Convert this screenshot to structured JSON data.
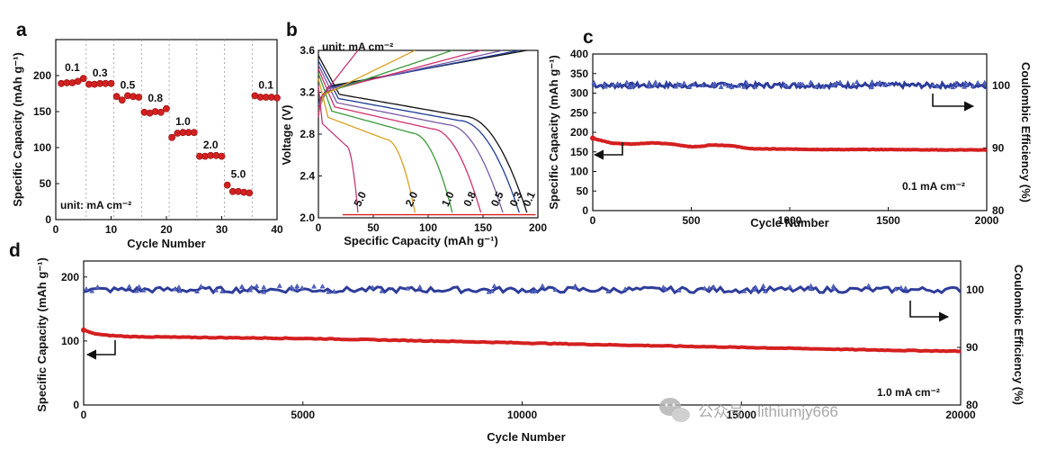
{
  "colors": {
    "capacity": "#d42020",
    "ce": "#2e3d9a",
    "arrow": "#111111"
  },
  "watermark": {
    "text": "公众号 · lithiumjy666",
    "icon": "wechat-icon"
  },
  "chart_data": [
    {
      "panel": "a",
      "type": "scatter",
      "xlabel": "Cycle Number",
      "ylabel": "Specific Capacity (mAh g⁻¹)",
      "xlim": [
        0,
        40
      ],
      "ylim": [
        0,
        250
      ],
      "xticks": [
        0,
        10,
        20,
        30,
        40
      ],
      "yticks": [
        0,
        50,
        100,
        150,
        200
      ],
      "unit_note": "unit: mA cm⁻²",
      "groups": [
        {
          "rate": "0.1",
          "x": [
            1,
            2,
            3,
            4,
            5
          ],
          "y": [
            189,
            190,
            190,
            192,
            196
          ]
        },
        {
          "rate": "0.3",
          "x": [
            6,
            7,
            8,
            9,
            10
          ],
          "y": [
            188,
            188,
            189,
            189,
            189
          ]
        },
        {
          "rate": "0.5",
          "x": [
            11,
            12,
            13,
            14,
            15
          ],
          "y": [
            171,
            166,
            172,
            171,
            170
          ]
        },
        {
          "rate": "0.8",
          "x": [
            16,
            17,
            18,
            19,
            20
          ],
          "y": [
            149,
            148,
            150,
            149,
            154
          ]
        },
        {
          "rate": "1.0",
          "x": [
            21,
            22,
            23,
            24,
            25
          ],
          "y": [
            114,
            120,
            121,
            121,
            121
          ]
        },
        {
          "rate": "2.0",
          "x": [
            26,
            27,
            28,
            29,
            30
          ],
          "y": [
            88,
            88,
            89,
            89,
            88
          ]
        },
        {
          "rate": "5.0",
          "x": [
            31,
            32,
            33,
            34,
            35
          ],
          "y": [
            48,
            39,
            39,
            38,
            37
          ]
        },
        {
          "rate": "0.1",
          "x": [
            36,
            37,
            38,
            39,
            40
          ],
          "y": [
            172,
            170,
            170,
            170,
            169
          ]
        }
      ]
    },
    {
      "panel": "b",
      "type": "line",
      "xlabel": "Specific Capacity (mAh g⁻¹)",
      "ylabel": "Voltage (V)",
      "xlim": [
        0,
        200
      ],
      "ylim": [
        2.0,
        3.6
      ],
      "xticks": [
        0,
        50,
        100,
        150,
        200
      ],
      "yticks": [
        2.0,
        2.4,
        2.8,
        3.2,
        3.6
      ],
      "unit_note": "unit: mA cm⁻²",
      "series": [
        {
          "name": "0.1",
          "color": "#111111",
          "capacity": 190,
          "charge_start": 3.12,
          "discharge_start": 3.55,
          "plateau": 3.18
        },
        {
          "name": "0.3",
          "color": "#1e3c96",
          "capacity": 183,
          "charge_start": 3.1,
          "discharge_start": 3.5,
          "plateau": 3.14
        },
        {
          "name": "0.5",
          "color": "#7b5ba6",
          "capacity": 168,
          "charge_start": 3.08,
          "discharge_start": 3.46,
          "plateau": 3.1
        },
        {
          "name": "0.8",
          "color": "#d0306e",
          "capacity": 148,
          "charge_start": 3.05,
          "discharge_start": 3.42,
          "plateau": 3.06
        },
        {
          "name": "1.0",
          "color": "#3b9a3b",
          "capacity": 122,
          "charge_start": 3.03,
          "discharge_start": 3.38,
          "plateau": 3.02
        },
        {
          "name": "2.0",
          "color": "#d8a020",
          "capacity": 88,
          "charge_start": 3.0,
          "discharge_start": 3.33,
          "plateau": 2.96
        },
        {
          "name": "5.0",
          "color": "#c23a7a",
          "capacity": 36,
          "charge_start": 2.96,
          "discharge_start": 3.26,
          "plateau": 2.9
        }
      ],
      "curve_labels": [
        "5.0",
        "2.0",
        "1.0",
        "0.8",
        "0.5",
        "0.3",
        "0.1"
      ]
    },
    {
      "panel": "c",
      "type": "scatter",
      "xlabel": "Cycle Number",
      "ylabel_left": "Specific Capacity (mAh g⁻¹)",
      "ylabel_right": "Coulombic Efficiency (%)",
      "xlim": [
        0,
        2000
      ],
      "ylim_left": [
        0,
        400
      ],
      "ylim_right": [
        80,
        105
      ],
      "xticks": [
        0,
        500,
        1000,
        1500,
        2000
      ],
      "yticks_left": [
        0,
        50,
        100,
        150,
        200,
        250,
        300,
        350,
        400
      ],
      "yticks_right": [
        80,
        90,
        100
      ],
      "rate_note": "0.1 mA cm⁻²",
      "capacity": {
        "x": [
          0,
          50,
          100,
          200,
          300,
          400,
          500,
          550,
          600,
          650,
          700,
          800,
          1000,
          1200,
          1500,
          1800,
          2000
        ],
        "y": [
          185,
          178,
          172,
          170,
          173,
          170,
          163,
          164,
          168,
          167,
          166,
          158,
          157,
          156,
          156,
          155,
          155
        ]
      },
      "coulombic_efficiency": {
        "mean": 100.0,
        "noise": 0.4
      }
    },
    {
      "panel": "d",
      "type": "scatter",
      "xlabel": "Cycle Number",
      "ylabel_left": "Specific Capacity (mAh g⁻¹)",
      "ylabel_right": "Coulombic Efficiency (%)",
      "xlim": [
        0,
        20000
      ],
      "ylim_left": [
        0,
        225
      ],
      "ylim_right": [
        80,
        105
      ],
      "xticks": [
        0,
        5000,
        10000,
        15000,
        20000
      ],
      "yticks_left": [
        0,
        100,
        200
      ],
      "yticks_right": [
        80,
        90,
        100
      ],
      "rate_note": "1.0 mA cm⁻²",
      "capacity": {
        "x": [
          0,
          200,
          500,
          1000,
          2000,
          5000,
          8000,
          10000,
          12000,
          15000,
          18000,
          20000
        ],
        "y": [
          117,
          112,
          109,
          107,
          106,
          104,
          100,
          97,
          94,
          90,
          86,
          84
        ]
      },
      "coulombic_efficiency": {
        "mean": 100.0,
        "noise": 0.5
      }
    }
  ]
}
